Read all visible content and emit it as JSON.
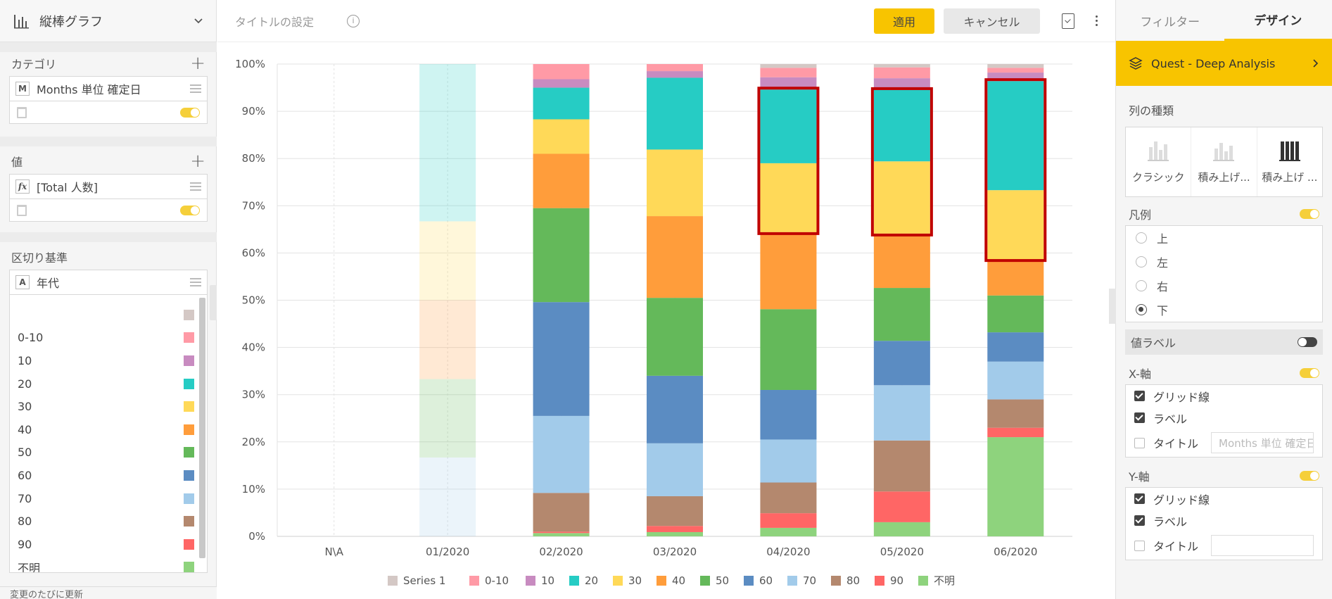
{
  "left_panel": {
    "chart_type_label": "縦棒グラフ",
    "category": {
      "title": "カテゴリ",
      "badge": "M",
      "field": "Months 単位 確定日"
    },
    "values": {
      "title": "値",
      "badge": "fx",
      "field": "[Total 人数]"
    },
    "breakdown": {
      "title": "区切り基準",
      "badge": "A",
      "field": "年代",
      "items": [
        {
          "label": "",
          "color": "#d4c8c5"
        },
        {
          "label": "0-10",
          "color": "#ff9aa6"
        },
        {
          "label": "10",
          "color": "#c88bc0"
        },
        {
          "label": "20",
          "color": "#26ccc4"
        },
        {
          "label": "30",
          "color": "#ffd958"
        },
        {
          "label": "40",
          "color": "#ff9d3b"
        },
        {
          "label": "50",
          "color": "#64b95a"
        },
        {
          "label": "60",
          "color": "#5b8cc2"
        },
        {
          "label": "70",
          "color": "#a2cbea"
        },
        {
          "label": "80",
          "color": "#b4886e"
        },
        {
          "label": "90",
          "color": "#ff6665"
        },
        {
          "label": "不明",
          "color": "#8ed37d"
        }
      ]
    },
    "footer_text": "変更のたびに更新"
  },
  "toolbar": {
    "title_placeholder": "タイトルの設定",
    "info_icon": "i",
    "apply_label": "適用",
    "cancel_label": "キャンセル"
  },
  "chart_data": {
    "type": "bar",
    "stacked": "percent",
    "categories": [
      "N\\A",
      "01/2020",
      "02/2020",
      "03/2020",
      "04/2020",
      "05/2020",
      "06/2020"
    ],
    "ylim": [
      0,
      100
    ],
    "yticks": [
      "0%",
      "10%",
      "20%",
      "30%",
      "40%",
      "50%",
      "60%",
      "70%",
      "80%",
      "90%",
      "100%"
    ],
    "series": [
      {
        "name": "不明",
        "color": "#8ed37d",
        "values": [
          0,
          0,
          0.7,
          0.9,
          1.8,
          3,
          21
        ]
      },
      {
        "name": "90",
        "color": "#ff6665",
        "values": [
          0,
          0,
          0.3,
          1.3,
          3.1,
          6.5,
          2
        ]
      },
      {
        "name": "80",
        "color": "#b4886e",
        "values": [
          0,
          0,
          8.2,
          6.3,
          6.5,
          10.8,
          6
        ]
      },
      {
        "name": "70",
        "color": "#a2cbea",
        "values": [
          0,
          16.7,
          16.3,
          11.2,
          9.1,
          11.7,
          8
        ]
      },
      {
        "name": "60",
        "color": "#5b8cc2",
        "values": [
          0,
          0,
          24.1,
          14.3,
          10.5,
          9.4,
          6.2
        ]
      },
      {
        "name": "50",
        "color": "#64b95a",
        "values": [
          0,
          16.6,
          19.9,
          16.5,
          17.1,
          11.2,
          7.8
        ]
      },
      {
        "name": "40",
        "color": "#ff9d3b",
        "values": [
          0,
          16.7,
          11.5,
          17.3,
          16.3,
          11.5,
          7.7
        ]
      },
      {
        "name": "30",
        "color": "#ffd958",
        "values": [
          0,
          16.7,
          7.3,
          14.1,
          14.6,
          15.3,
          14.6
        ]
      },
      {
        "name": "20",
        "color": "#26ccc4",
        "values": [
          0,
          33.3,
          6.7,
          15.2,
          15.6,
          15.1,
          23.1
        ]
      },
      {
        "name": "10",
        "color": "#c88bc0",
        "values": [
          0,
          0,
          1.8,
          1.4,
          2.6,
          2.5,
          1.8
        ]
      },
      {
        "name": "0-10",
        "color": "#ff9aa6",
        "values": [
          0,
          0,
          3.2,
          1.5,
          2.0,
          2.3,
          1.0
        ]
      },
      {
        "name": "Series 1",
        "color": "#d4c8c5",
        "values": [
          0,
          0,
          0,
          0,
          0.8,
          0.7,
          0.8
        ]
      }
    ],
    "highlights": [
      {
        "category": "04/2020",
        "from_series": "30",
        "to_series": "20"
      },
      {
        "category": "05/2020",
        "from_series": "30",
        "to_series": "20"
      },
      {
        "category": "06/2020",
        "from_series": "30",
        "to_series": "20"
      }
    ],
    "faded_categories": [
      "01/2020"
    ],
    "legend_position": "bottom",
    "legend_order": [
      "Series 1",
      "0-10",
      "10",
      "20",
      "30",
      "40",
      "50",
      "60",
      "70",
      "80",
      "90",
      "不明"
    ],
    "grid": true
  },
  "right_panel": {
    "tab_filter": "フィルター",
    "tab_design": "デザイン",
    "quest_label": "Quest - Deep Analysis",
    "column_type_label": "列の種類",
    "column_types": [
      "クラシック",
      "積み上げ...",
      "積み上げ ..."
    ],
    "legend_label": "凡例",
    "legend_options": [
      "上",
      "左",
      "右",
      "下"
    ],
    "value_label_label": "値ラベル",
    "x_axis": {
      "label": "X-軸",
      "grid": "グリッド線",
      "labels": "ラベル",
      "title": "タイトル",
      "title_value": "Months 単位 確定日"
    },
    "y_axis": {
      "label": "Y-軸",
      "grid": "グリッド線",
      "labels": "ラベル",
      "title": "タイトル",
      "title_value": ""
    }
  }
}
